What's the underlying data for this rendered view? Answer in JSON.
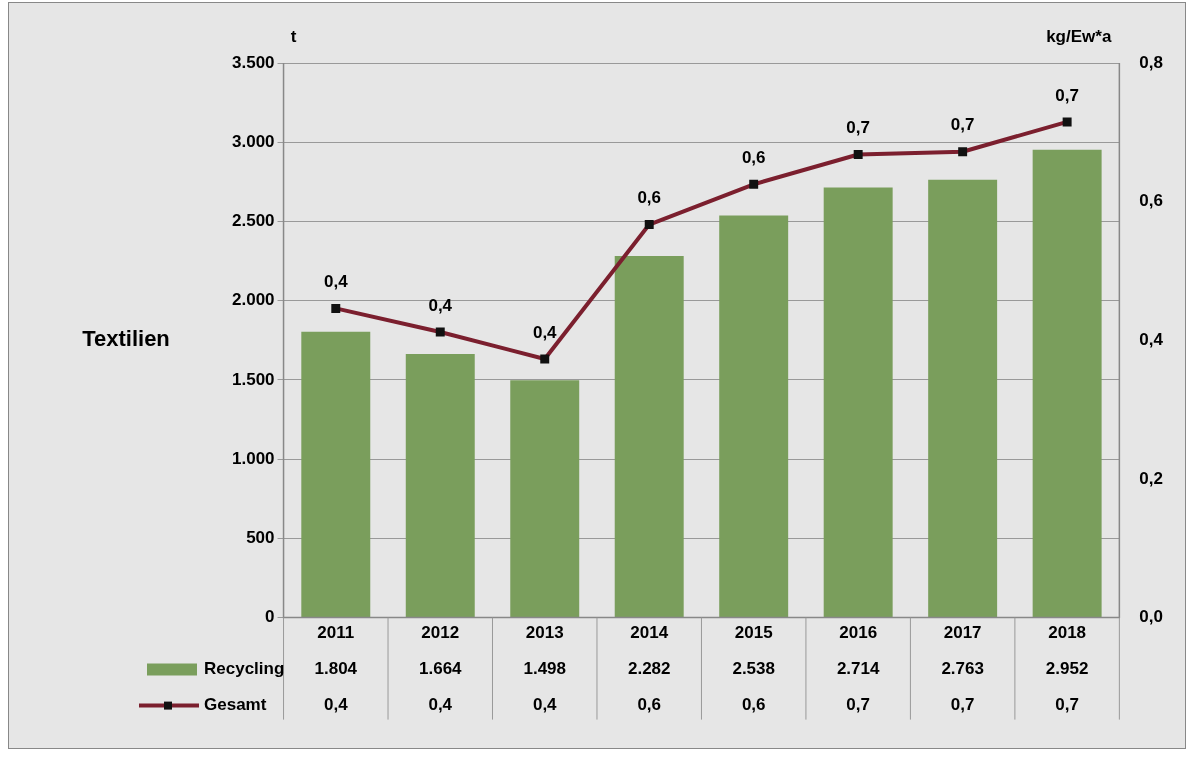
{
  "chart_data": {
    "type": "bar",
    "title": "Textilien",
    "ylabel": "t",
    "y2label": "kg/Ew*a",
    "categories": [
      "2011",
      "2012",
      "2013",
      "2014",
      "2015",
      "2016",
      "2017",
      "2018"
    ],
    "series": [
      {
        "name": "Recycling",
        "color": "#7a9e5c",
        "values": [
          1804,
          1664,
          1498,
          2282,
          2538,
          2714,
          2763,
          2952
        ],
        "value_labels": [
          "1.804",
          "1.664",
          "1.498",
          "2.282",
          "2.538",
          "2.714",
          "2.763",
          "2.952"
        ]
      },
      {
        "name": "Gesamt",
        "type": "line",
        "axis": "y2",
        "color": "#7b1f2e",
        "values": [
          0.446,
          0.412,
          0.373,
          0.567,
          0.625,
          0.668,
          0.672,
          0.715
        ],
        "value_labels": [
          "0,4",
          "0,4",
          "0,4",
          "0,6",
          "0,6",
          "0,7",
          "0,7",
          "0,7"
        ]
      }
    ],
    "ylim": [
      0,
      3500
    ],
    "yticks": [
      0,
      {
        "value": 500,
        "label": "500"
      },
      {
        "value": 1000,
        "label": "1.000"
      },
      {
        "value": 1500,
        "label": "1.500"
      },
      {
        "value": 2000,
        "label": "2.000"
      },
      {
        "value": 2500,
        "label": "2.500"
      },
      {
        "value": 3000,
        "label": "3.000"
      },
      {
        "value": 3500,
        "label": "3.500"
      }
    ],
    "y2lim": [
      0,
      0.8
    ],
    "y2ticks": [
      {
        "value": 0,
        "label": "0,0"
      },
      {
        "value": 0.2,
        "label": "0,2"
      },
      {
        "value": 0.4,
        "label": "0,4"
      },
      {
        "value": 0.6,
        "label": "0,6"
      },
      {
        "value": 0.8,
        "label": "0,8"
      }
    ],
    "grid": "y",
    "legend": "bottom",
    "marker": "square",
    "line_style": "solid"
  }
}
